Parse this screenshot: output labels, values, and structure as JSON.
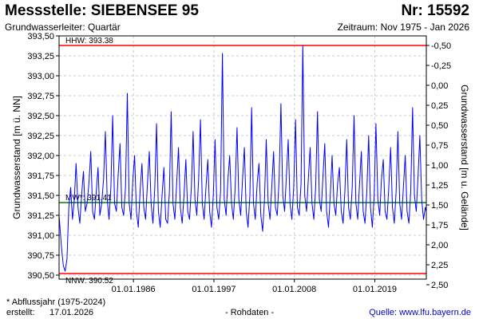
{
  "header": {
    "title": "Messstelle: SIEBENSEE 95",
    "number": "Nr: 15592",
    "aquifer": "Grundwasserleiter: Quartär",
    "period": "Zeitraum: Nov 1975 - Jan 2026"
  },
  "footer": {
    "note": "* Abflussjahr (1975-2024)",
    "created_label": "erstellt:",
    "created_date": "17.01.2026",
    "raw_label": "- Rohdaten -",
    "source": "Quelle: www.lfu.bayern.de"
  },
  "colors": {
    "series": "#0000ff",
    "hhw_nnw": "#ff0000",
    "mw": "#008000",
    "grid": "#cccccc"
  },
  "chart_data": {
    "type": "line",
    "ylabel": "Grundwasserstand [m ü. NN]",
    "ylabel_right": "Grundwasserstand [m u. Gelände]",
    "ylim": [
      390.45,
      393.5
    ],
    "yticks": [
      390.5,
      390.75,
      391.0,
      391.25,
      391.5,
      391.75,
      392.0,
      392.25,
      392.5,
      392.75,
      393.0,
      393.25,
      393.5
    ],
    "ytick_labels": [
      "390,50",
      "390,75",
      "391,00",
      "391,25",
      "391,50",
      "391,75",
      "392,00",
      "392,25",
      "392,50",
      "392,75",
      "393,00",
      "393,25",
      "393,50"
    ],
    "right_ticks": [
      -0.5,
      -0.25,
      0.0,
      0.25,
      0.5,
      0.75,
      1.0,
      1.25,
      1.5,
      1.75,
      2.0,
      2.25,
      2.5
    ],
    "right_tick_labels": [
      "-0,50",
      "-0,25",
      "0,00",
      "0,25",
      "0,50",
      "0,75",
      "1,00",
      "1,25",
      "1,50",
      "1,75",
      "2,00",
      "2,25",
      "2,50"
    ],
    "right_axis_zero_at": 392.88,
    "xlim": [
      "1975-11-01",
      "2026-01-17"
    ],
    "xticks": [
      "1986-01-01",
      "1997-01-01",
      "2008-01-01",
      "2019-01-01"
    ],
    "xtick_labels": [
      "01.01.1986",
      "01.01.1997",
      "01.01.2008",
      "01.01.2019"
    ],
    "reference_lines": [
      {
        "name": "HHW",
        "label": "HHW: 393.38",
        "value": 393.38
      },
      {
        "name": "MW",
        "label": "MW*: 391.41",
        "value": 391.41
      },
      {
        "name": "NNW",
        "label": "NNW: 390.52",
        "value": 390.52
      }
    ],
    "series": [
      {
        "x": [
          "1975-11-01",
          "1976-01-01",
          "1976-03-01",
          "1976-06-01",
          "1976-09-01",
          "1976-12-01",
          "1977-03-01",
          "1977-06-01",
          "1977-09-01",
          "1977-12-01",
          "1978-03-01",
          "1978-06-01",
          "1978-09-01",
          "1978-12-01",
          "1979-03-01",
          "1979-06-01",
          "1979-09-01",
          "1979-12-01",
          "1980-03-01",
          "1980-06-01",
          "1980-09-01",
          "1980-12-01",
          "1981-03-01",
          "1981-06-01",
          "1981-09-01",
          "1981-12-01",
          "1982-03-01",
          "1982-06-01",
          "1982-09-01",
          "1982-12-01",
          "1983-03-01",
          "1983-06-01",
          "1983-09-01",
          "1983-12-01",
          "1984-03-01",
          "1984-06-01",
          "1984-09-01",
          "1984-12-01",
          "1985-03-01",
          "1985-06-01",
          "1985-09-01",
          "1985-12-01",
          "1986-03-01",
          "1986-06-01",
          "1986-09-01",
          "1986-12-01",
          "1987-03-01",
          "1987-06-01",
          "1987-09-01",
          "1987-12-01",
          "1988-03-01",
          "1988-06-01",
          "1988-09-01",
          "1988-12-01",
          "1989-03-01",
          "1989-06-01",
          "1989-09-01",
          "1989-12-01",
          "1990-03-01",
          "1990-06-01",
          "1990-09-01",
          "1990-12-01",
          "1991-03-01",
          "1991-06-01",
          "1991-09-01",
          "1991-12-01",
          "1992-03-01",
          "1992-06-01",
          "1992-09-01",
          "1992-12-01",
          "1993-03-01",
          "1993-06-01",
          "1993-09-01",
          "1993-12-01",
          "1994-03-01",
          "1994-06-01",
          "1994-09-01",
          "1994-12-01",
          "1995-03-01",
          "1995-06-01",
          "1995-09-01",
          "1995-12-01",
          "1996-03-01",
          "1996-06-01",
          "1996-09-01",
          "1996-12-01",
          "1997-03-01",
          "1997-06-01",
          "1997-09-01",
          "1997-12-01",
          "1998-03-01",
          "1998-06-01",
          "1998-09-01",
          "1998-12-01",
          "1999-03-01",
          "1999-06-01",
          "1999-09-01",
          "1999-12-01",
          "2000-03-01",
          "2000-06-01",
          "2000-09-01",
          "2000-12-01",
          "2001-03-01",
          "2001-06-01",
          "2001-09-01",
          "2001-12-01",
          "2002-03-01",
          "2002-06-01",
          "2002-09-01",
          "2002-12-01",
          "2003-03-01",
          "2003-06-01",
          "2003-09-01",
          "2003-12-01",
          "2004-03-01",
          "2004-06-01",
          "2004-09-01",
          "2004-12-01",
          "2005-03-01",
          "2005-06-01",
          "2005-09-01",
          "2005-12-01",
          "2006-03-01",
          "2006-06-01",
          "2006-09-01",
          "2006-12-01",
          "2007-03-01",
          "2007-06-01",
          "2007-09-01",
          "2007-12-01",
          "2008-03-01",
          "2008-06-01",
          "2008-09-01",
          "2008-12-01",
          "2009-03-01",
          "2009-06-01",
          "2009-09-01",
          "2009-12-01",
          "2010-03-01",
          "2010-06-01",
          "2010-09-01",
          "2010-12-01",
          "2011-03-01",
          "2011-06-01",
          "2011-09-01",
          "2011-12-01",
          "2012-03-01",
          "2012-06-01",
          "2012-09-01",
          "2012-12-01",
          "2013-03-01",
          "2013-06-01",
          "2013-09-01",
          "2013-12-01",
          "2014-03-01",
          "2014-06-01",
          "2014-09-01",
          "2014-12-01",
          "2015-03-01",
          "2015-06-01",
          "2015-09-01",
          "2015-12-01",
          "2016-03-01",
          "2016-06-01",
          "2016-09-01",
          "2016-12-01",
          "2017-03-01",
          "2017-06-01",
          "2017-09-01",
          "2017-12-01",
          "2018-03-01",
          "2018-06-01",
          "2018-09-01",
          "2018-12-01",
          "2019-03-01",
          "2019-06-01",
          "2019-09-01",
          "2019-12-01",
          "2020-03-01",
          "2020-06-01",
          "2020-09-01",
          "2020-12-01",
          "2021-03-01",
          "2021-06-01",
          "2021-09-01",
          "2021-12-01",
          "2022-03-01",
          "2022-06-01",
          "2022-09-01",
          "2022-12-01",
          "2023-03-01",
          "2023-06-01",
          "2023-09-01",
          "2023-12-01",
          "2024-03-01",
          "2024-06-01",
          "2024-09-01",
          "2024-12-01",
          "2025-03-01",
          "2025-06-01",
          "2025-09-01",
          "2025-12-01",
          "2026-01-15"
        ],
        "values": [
          391.25,
          391.05,
          390.85,
          390.62,
          390.55,
          390.7,
          391.35,
          391.6,
          391.2,
          391.45,
          391.9,
          391.35,
          391.15,
          391.5,
          391.8,
          391.3,
          391.4,
          391.65,
          392.05,
          391.3,
          391.2,
          391.55,
          391.85,
          391.25,
          391.4,
          391.7,
          392.3,
          391.45,
          391.2,
          391.6,
          392.5,
          391.4,
          391.3,
          391.75,
          392.15,
          391.35,
          391.25,
          391.6,
          392.78,
          391.4,
          391.2,
          391.7,
          392.0,
          391.3,
          391.1,
          391.55,
          391.9,
          391.35,
          391.2,
          391.65,
          392.05,
          391.4,
          391.15,
          391.6,
          392.4,
          391.3,
          391.1,
          391.5,
          391.85,
          391.2,
          391.15,
          391.55,
          392.55,
          391.4,
          391.2,
          391.65,
          392.1,
          391.35,
          391.15,
          391.5,
          391.95,
          391.3,
          391.2,
          391.6,
          392.3,
          391.45,
          391.25,
          391.7,
          392.45,
          391.4,
          391.2,
          391.6,
          391.95,
          391.3,
          391.1,
          391.5,
          392.2,
          391.35,
          391.2,
          391.55,
          393.28,
          391.45,
          391.25,
          391.7,
          392.0,
          391.4,
          391.2,
          391.6,
          392.35,
          391.45,
          391.25,
          391.7,
          392.1,
          391.3,
          391.1,
          391.5,
          392.6,
          391.4,
          391.2,
          391.65,
          391.9,
          391.25,
          391.05,
          391.45,
          392.2,
          391.4,
          391.2,
          391.6,
          392.05,
          391.35,
          391.25,
          391.7,
          392.65,
          391.5,
          391.3,
          391.75,
          392.2,
          391.4,
          391.2,
          391.6,
          392.45,
          391.35,
          391.25,
          391.65,
          393.38,
          391.5,
          391.3,
          391.7,
          392.1,
          391.4,
          391.2,
          391.6,
          392.55,
          391.45,
          391.3,
          391.75,
          392.15,
          391.3,
          391.1,
          391.5,
          392.0,
          391.4,
          391.25,
          391.65,
          391.85,
          391.3,
          391.15,
          391.55,
          392.2,
          391.35,
          391.2,
          391.6,
          392.5,
          391.4,
          391.2,
          391.65,
          392.05,
          391.3,
          391.15,
          391.55,
          392.25,
          391.35,
          391.1,
          391.5,
          392.4,
          391.45,
          391.25,
          391.7,
          391.95,
          391.3,
          391.2,
          391.6,
          392.1,
          391.35,
          391.15,
          391.55,
          392.3,
          391.4,
          391.2,
          391.6,
          392.0,
          391.3,
          391.15,
          391.55,
          392.6,
          391.5,
          391.3,
          391.75,
          392.25,
          391.45,
          391.2,
          391.35,
          391.3
        ]
      }
    ]
  }
}
